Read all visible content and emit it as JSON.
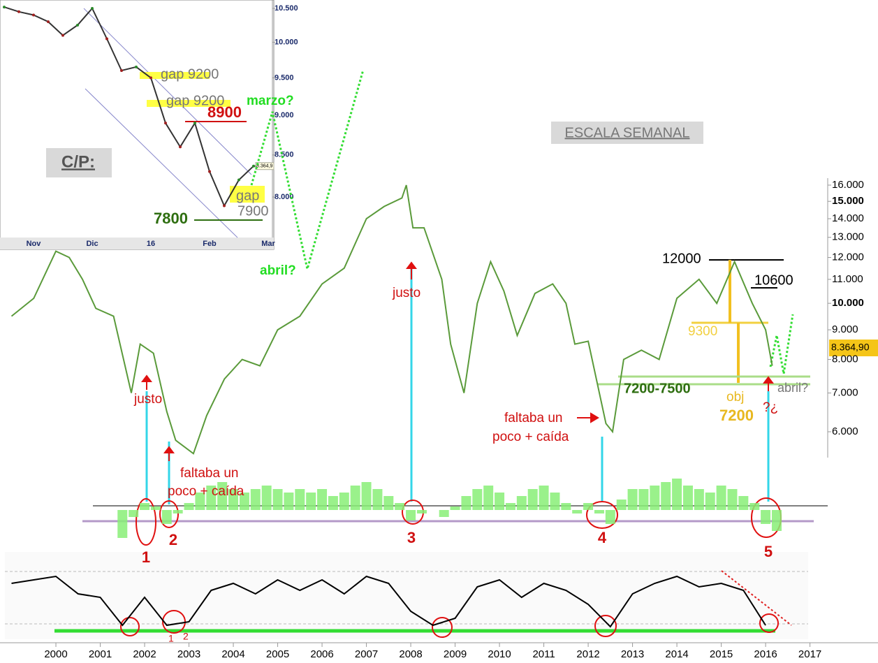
{
  "chart_data": [
    {
      "type": "inset-line",
      "color": "#333333",
      "log": true,
      "categories": [
        null,
        null,
        "Nov",
        null,
        null,
        null,
        "Dic",
        null,
        null,
        null,
        "16",
        null,
        null,
        null,
        "Feb",
        null,
        null,
        null,
        "Mar"
      ],
      "values": [
        10520,
        10450,
        10400,
        10300,
        10100,
        10250,
        10500,
        10050,
        9600,
        9650,
        9500,
        8900,
        8600,
        8900,
        8300,
        7900,
        8200,
        8364.9,
        8364.9
      ],
      "ylim": [
        7546,
        10628
      ],
      "yticks": [
        {
          "value": 10500,
          "label": "10.500"
        },
        {
          "value": 10000,
          "label": "10.000"
        },
        {
          "value": 9500,
          "label": "9.500"
        },
        {
          "value": 9000,
          "label": "9.000"
        },
        {
          "value": 8500,
          "label": "8.500"
        },
        {
          "value": 8000,
          "label": "8.000"
        }
      ],
      "last_label": {
        "value": 8364.9,
        "label": "8.364,9"
      }
    },
    {
      "type": "price-line",
      "color": "#5a9a3a",
      "log": true,
      "x": [
        1999.0,
        1999.5,
        2000.0,
        2000.3,
        2000.6,
        2000.9,
        2001.3,
        2001.7,
        2001.9,
        2002.2,
        2002.5,
        2002.7,
        2003.1,
        2003.4,
        2003.8,
        2004.2,
        2004.6,
        2005.0,
        2005.5,
        2006.0,
        2006.5,
        2007.0,
        2007.4,
        2007.8,
        2007.9,
        2008.05,
        2008.3,
        2008.7,
        2008.9,
        2009.2,
        2009.5,
        2009.8,
        2010.1,
        2010.4,
        2010.8,
        2011.2,
        2011.5,
        2011.7,
        2012.0,
        2012.4,
        2012.55,
        2012.8,
        2013.2,
        2013.6,
        2014.0,
        2014.5,
        2014.9,
        2015.3,
        2015.7,
        2016.0,
        2016.15
      ],
      "values": [
        9500,
        10200,
        12300,
        12000,
        11000,
        9800,
        9500,
        7000,
        8500,
        8200,
        6500,
        5800,
        5500,
        6400,
        7400,
        8000,
        7800,
        9000,
        9500,
        10800,
        11500,
        14000,
        14700,
        15200,
        16000,
        13500,
        13500,
        11000,
        8500,
        7000,
        10000,
        11800,
        10500,
        8800,
        10400,
        10800,
        10000,
        8500,
        8600,
        6200,
        6000,
        8000,
        8300,
        8000,
        10200,
        11000,
        10000,
        11800,
        10000,
        9000,
        7800
      ],
      "xlim": [
        1998.85,
        2017.4
      ],
      "ylim": [
        5414,
        16450
      ],
      "yticks": [
        {
          "value": 16000,
          "label": "16.000"
        },
        {
          "value": 15000,
          "label": "15.000"
        },
        {
          "value": 14000,
          "label": "14.000"
        },
        {
          "value": 13000,
          "label": "13.000"
        },
        {
          "value": 12000,
          "label": "12.000"
        },
        {
          "value": 11000,
          "label": "11.000"
        },
        {
          "value": 10000,
          "label": "10.000"
        },
        {
          "value": 9000,
          "label": "9.000"
        },
        {
          "value": 8000,
          "label": "8.000"
        },
        {
          "value": 7000,
          "label": "7.000"
        },
        {
          "value": 6000,
          "label": "6.000"
        }
      ],
      "annotations": [
        "gap 9200",
        "gap 9200",
        "8900",
        "C/P:",
        "gap",
        "7900",
        "7800",
        "marzo?",
        "abril?",
        "ESCALA SEMANAL",
        "justo",
        "justo",
        "faltaba un",
        "poco + caída",
        "faltaba un",
        "poco + caída",
        "12000",
        "10600",
        "9300",
        "7200-7500",
        "obj",
        "7200",
        "?¿",
        "abril?",
        "8.364,90",
        "1",
        "2",
        "3",
        "4",
        "5",
        "1",
        "2"
      ]
    },
    {
      "type": "bar",
      "color": "#88ee77",
      "x": [
        2001.5,
        2001.75,
        2002.0,
        2002.25,
        2002.5,
        2002.75,
        2003.0,
        2003.25,
        2003.5,
        2003.75,
        2004.0,
        2004.25,
        2004.5,
        2004.75,
        2005.0,
        2005.25,
        2005.5,
        2005.75,
        2006.0,
        2006.25,
        2006.5,
        2006.75,
        2007.0,
        2007.25,
        2007.5,
        2007.75,
        2008.0,
        2008.25,
        2008.5,
        2008.75,
        2009.0,
        2009.25,
        2009.5,
        2009.75,
        2010.0,
        2010.25,
        2010.5,
        2010.75,
        2011.0,
        2011.25,
        2011.5,
        2011.75,
        2012.0,
        2012.25,
        2012.5,
        2012.75,
        2013.0,
        2013.25,
        2013.5,
        2013.75,
        2014.0,
        2014.25,
        2014.5,
        2014.75,
        2015.0,
        2015.25,
        2015.5,
        2015.75,
        2016.0,
        2016.25
      ],
      "values": [
        -40,
        -10,
        10,
        5,
        -20,
        -5,
        10,
        25,
        35,
        40,
        30,
        25,
        30,
        35,
        30,
        25,
        30,
        25,
        30,
        20,
        25,
        35,
        40,
        30,
        20,
        10,
        -15,
        -5,
        0,
        -10,
        5,
        20,
        30,
        35,
        25,
        10,
        20,
        30,
        35,
        25,
        10,
        -5,
        10,
        -5,
        -20,
        15,
        30,
        30,
        35,
        40,
        45,
        35,
        30,
        25,
        35,
        30,
        20,
        10,
        -20,
        -30
      ],
      "xlim": [
        1998.85,
        2017.4
      ],
      "ylim": [
        -50,
        60
      ]
    },
    {
      "type": "osc-line",
      "color": "#000000",
      "x": [
        1999.0,
        1999.5,
        2000.0,
        2000.5,
        2001.0,
        2001.5,
        2002.0,
        2002.5,
        2003.0,
        2003.5,
        2004.0,
        2004.5,
        2005.0,
        2005.5,
        2006.0,
        2006.5,
        2007.0,
        2007.5,
        2008.0,
        2008.5,
        2009.0,
        2009.5,
        2010.0,
        2010.5,
        2011.0,
        2011.5,
        2012.0,
        2012.5,
        2013.0,
        2013.5,
        2014.0,
        2014.5,
        2015.0,
        2015.5,
        2016.0
      ],
      "values": [
        70,
        75,
        80,
        55,
        50,
        10,
        50,
        10,
        15,
        60,
        70,
        55,
        75,
        60,
        75,
        55,
        80,
        70,
        30,
        10,
        20,
        65,
        75,
        50,
        70,
        60,
        40,
        8,
        55,
        70,
        80,
        65,
        70,
        60,
        10
      ],
      "xlim": [
        1998.85,
        2017.4
      ],
      "ylim": [
        0,
        100
      ],
      "xticks": [
        2000,
        2001,
        2002,
        2003,
        2004,
        2005,
        2006,
        2007,
        2008,
        2009,
        2010,
        2011,
        2012,
        2013,
        2014,
        2015,
        2016,
        2017
      ]
    }
  ]
}
